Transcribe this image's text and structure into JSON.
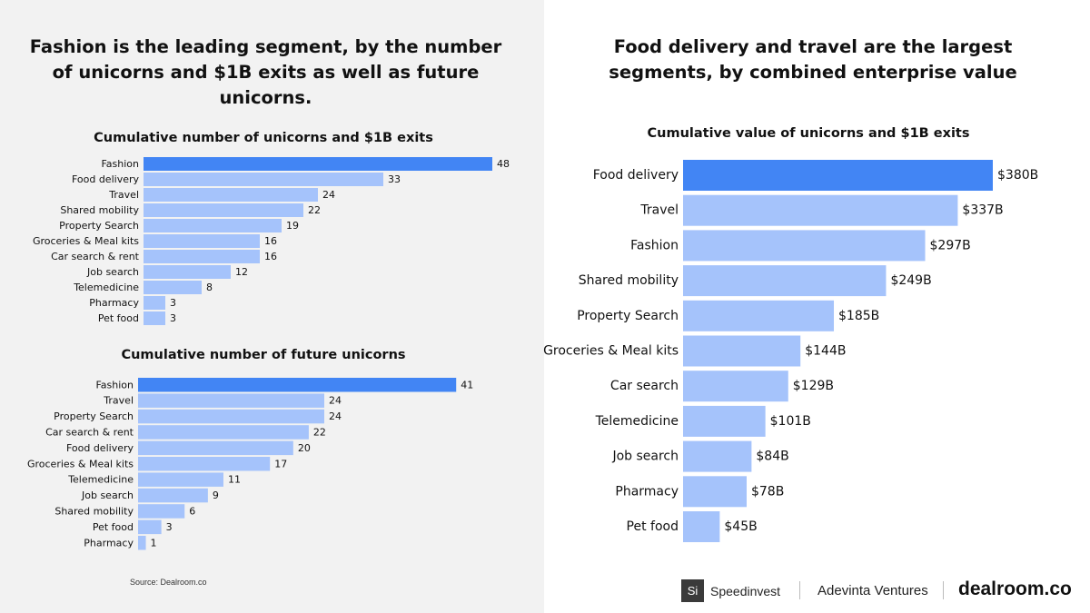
{
  "left": {
    "headline": "Fashion is the leading segment, by the number of unicorns and $1B exits as well as future unicorns.",
    "source": "Source: Dealroom.co"
  },
  "right": {
    "headline": "Food delivery and travel are the largest segments, by combined enterprise value"
  },
  "logos": {
    "si_mark": "Si",
    "speedinvest": "Speedinvest",
    "adevinta": "Adevinta Ventures",
    "dealroom": "dealroom.co"
  },
  "colors": {
    "highlight": "#4285f4",
    "bar": "#a5c3fb",
    "left_bg": "#f2f2f2"
  },
  "chart_data": [
    {
      "type": "bar",
      "orientation": "horizontal",
      "title": "Cumulative number of unicorns and $1B exits",
      "categories": [
        "Fashion",
        "Food delivery",
        "Travel",
        "Shared mobility",
        "Property Search",
        "Groceries & Meal kits",
        "Car search & rent",
        "Job search",
        "Telemedicine",
        "Pharmacy",
        "Pet food"
      ],
      "values": [
        48,
        33,
        24,
        22,
        19,
        16,
        16,
        12,
        8,
        3,
        3
      ],
      "value_labels": [
        "48",
        "33",
        "24",
        "22",
        "19",
        "16",
        "16",
        "12",
        "8",
        "3",
        "3"
      ],
      "xlim": [
        0,
        48
      ]
    },
    {
      "type": "bar",
      "orientation": "horizontal",
      "title": "Cumulative number of future unicorns",
      "categories": [
        "Fashion",
        "Travel",
        "Property Search",
        "Car search & rent",
        "Food delivery",
        "Groceries & Meal kits",
        "Telemedicine",
        "Job search",
        "Shared mobility",
        "Pet food",
        "Pharmacy"
      ],
      "values": [
        41,
        24,
        24,
        22,
        20,
        17,
        11,
        9,
        6,
        3,
        1
      ],
      "value_labels": [
        "41",
        "24",
        "24",
        "22",
        "20",
        "17",
        "11",
        "9",
        "6",
        "3",
        "1"
      ],
      "xlim": [
        0,
        48
      ]
    },
    {
      "type": "bar",
      "orientation": "horizontal",
      "title": "Cumulative value of unicorns and $1B exits",
      "categories": [
        "Food delivery",
        "Travel",
        "Fashion",
        "Shared mobility",
        "Property Search",
        "Groceries & Meal kits",
        "Car search",
        "Telemedicine",
        "Job search",
        "Pharmacy",
        "Pet food"
      ],
      "values": [
        380,
        337,
        297,
        249,
        185,
        144,
        129,
        101,
        84,
        78,
        45
      ],
      "value_labels": [
        "$380B",
        "$337B",
        "$297B",
        "$249B",
        "$185B",
        "$144B",
        "$129B",
        "$101B",
        "$84B",
        "$78B",
        "$45B"
      ],
      "unit": "$B",
      "xlim": [
        0,
        380
      ]
    }
  ]
}
